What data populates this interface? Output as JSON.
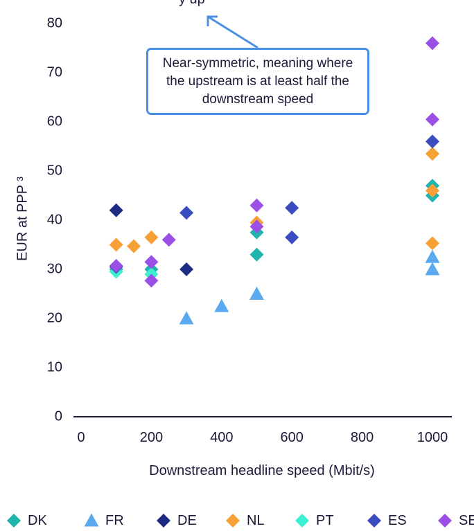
{
  "chart_data": {
    "type": "scatter",
    "title": "",
    "xlabel": "Downstream headline speed (Mbit/s)",
    "ylabel": "EUR at PPP ³",
    "xlim": [
      0,
      1000
    ],
    "ylim": [
      0,
      80
    ],
    "x_ticks": [
      "0",
      "200",
      "400",
      "600",
      "800",
      "1000"
    ],
    "y_ticks": [
      "0",
      "10",
      "20",
      "30",
      "40",
      "50",
      "60",
      "70",
      "80"
    ],
    "legend_position": "bottom",
    "series": [
      {
        "name": "DK",
        "marker": "diamond",
        "color": "#1fb5ad",
        "points": [
          [
            100,
            30
          ],
          [
            200,
            30
          ],
          [
            500,
            37.5
          ],
          [
            500,
            33
          ],
          [
            1000,
            47
          ],
          [
            1000,
            45
          ]
        ]
      },
      {
        "name": "FR",
        "marker": "triangle",
        "color": "#5aaaf0",
        "points": [
          [
            300,
            20
          ],
          [
            400,
            22.5
          ],
          [
            500,
            25
          ],
          [
            1000,
            32.5
          ],
          [
            1000,
            30
          ]
        ]
      },
      {
        "name": "DE",
        "marker": "diamond",
        "color": "#1f2c84",
        "points": [
          [
            100,
            42
          ],
          [
            300,
            30
          ]
        ]
      },
      {
        "name": "NL",
        "marker": "diamond",
        "color": "#f7a035",
        "points": [
          [
            100,
            35
          ],
          [
            150,
            34.7
          ],
          [
            200,
            36.5
          ],
          [
            500,
            39.5
          ],
          [
            1000,
            53.5
          ],
          [
            1000,
            46
          ],
          [
            1000,
            35.3
          ]
        ]
      },
      {
        "name": "PT",
        "marker": "diamond",
        "color": "#3ef0cf",
        "points": [
          [
            100,
            29.5
          ],
          [
            200,
            29
          ]
        ]
      },
      {
        "name": "ES",
        "marker": "diamond",
        "color": "#3a4cc0",
        "points": [
          [
            100,
            30.5
          ],
          [
            300,
            41.5
          ],
          [
            600,
            42.5
          ],
          [
            600,
            36.5
          ],
          [
            1000,
            56
          ]
        ]
      },
      {
        "name": "SE",
        "marker": "diamond",
        "color": "#9b4fe6",
        "points": [
          [
            100,
            30.7
          ],
          [
            200,
            31.5
          ],
          [
            200,
            27.7
          ],
          [
            250,
            36
          ],
          [
            500,
            43
          ],
          [
            500,
            38.7
          ],
          [
            1000,
            76
          ],
          [
            1000,
            60.5
          ]
        ]
      }
    ],
    "annotations": [
      {
        "text": "Near-symmetric, meaning where the upstream is at least half the downstream speed",
        "arrow_target": "upper-left"
      }
    ]
  },
  "callout": {
    "text": "Near-symmetric, meaning where the upstream is at least half the downstream speed",
    "cut_off_top_text": "y   up"
  },
  "colors": {
    "axis": "#1b1b3a",
    "callout_border": "#4a90e2"
  }
}
